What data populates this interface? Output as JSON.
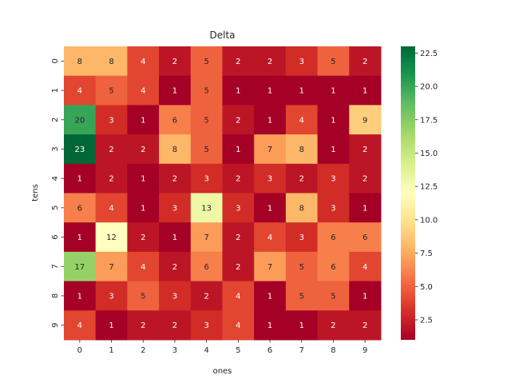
{
  "chart_data": {
    "type": "heatmap",
    "title": "Delta",
    "xlabel": "ones",
    "ylabel": "tens",
    "x_categories": [
      "0",
      "1",
      "2",
      "3",
      "4",
      "5",
      "6",
      "7",
      "8",
      "9"
    ],
    "y_categories": [
      "0",
      "1",
      "2",
      "3",
      "4",
      "5",
      "6",
      "7",
      "8",
      "9"
    ],
    "values": [
      [
        8,
        8,
        4,
        2,
        5,
        2,
        2,
        3,
        5,
        2
      ],
      [
        4,
        5,
        4,
        1,
        5,
        1,
        1,
        1,
        1,
        1
      ],
      [
        20,
        3,
        1,
        6,
        5,
        2,
        1,
        4,
        1,
        9
      ],
      [
        23,
        2,
        2,
        8,
        5,
        1,
        7,
        8,
        1,
        2
      ],
      [
        1,
        2,
        1,
        2,
        3,
        2,
        3,
        2,
        3,
        2
      ],
      [
        6,
        4,
        1,
        3,
        13,
        3,
        1,
        8,
        3,
        1
      ],
      [
        1,
        12,
        2,
        1,
        7,
        2,
        4,
        3,
        6,
        6
      ],
      [
        17,
        7,
        4,
        2,
        6,
        2,
        7,
        5,
        6,
        4
      ],
      [
        1,
        3,
        5,
        3,
        2,
        4,
        1,
        5,
        5,
        1
      ],
      [
        4,
        1,
        2,
        2,
        3,
        4,
        1,
        1,
        2,
        2
      ]
    ],
    "colormap": "RdYlGn",
    "vmin": 1,
    "vmax": 23,
    "colorbar_ticks": [
      "2.5",
      "5.0",
      "7.5",
      "10.0",
      "12.5",
      "15.0",
      "17.5",
      "20.0",
      "22.5"
    ],
    "grid": false
  }
}
